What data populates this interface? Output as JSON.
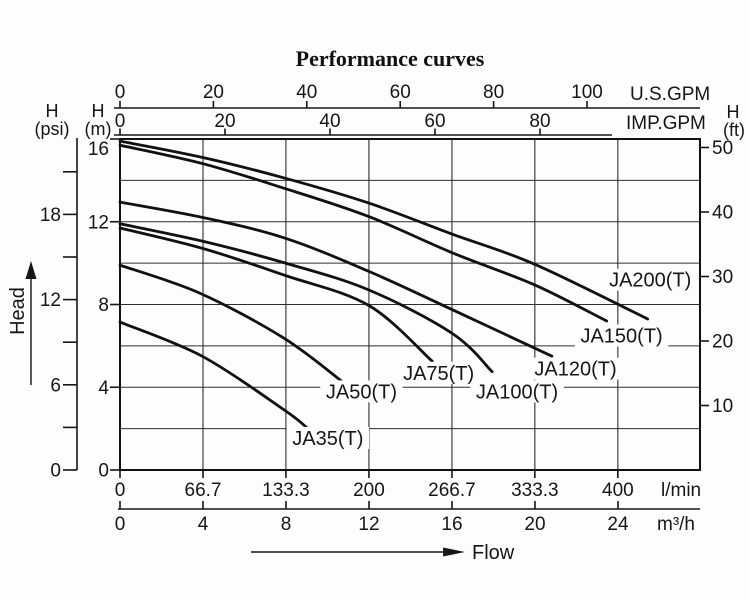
{
  "title": "Performance curves",
  "colors": {
    "ink": "#161616",
    "grid": "#2e2e2e",
    "curve": "#111111",
    "background": "#fdfdfd"
  },
  "corner_labels": {
    "psi_h": "H",
    "psi_unit": "(psi)",
    "m_h": "H",
    "m_unit": "(m)",
    "ft_h": "H",
    "ft_unit": "(ft)"
  },
  "chart_data": {
    "type": "line",
    "title": "Performance curves",
    "xlabel": "Flow",
    "ylabel": "Head",
    "grid": true,
    "x_range_lmin": [
      0,
      466
    ],
    "y_range_m": [
      0,
      16
    ],
    "x_axes": [
      {
        "name": "usgpm",
        "unit": "U.S.GPM",
        "ticks": [
          0,
          20,
          40,
          60,
          80,
          100
        ]
      },
      {
        "name": "impgpm",
        "unit": "IMP.GPM",
        "ticks": [
          0,
          20,
          40,
          60,
          80
        ]
      },
      {
        "name": "lmin",
        "unit": "l/min",
        "ticks": [
          0,
          66.7,
          133.3,
          200,
          266.7,
          333.3,
          400
        ]
      },
      {
        "name": "m3h",
        "unit": "m³/h",
        "ticks": [
          0,
          4,
          8,
          12,
          16,
          20,
          24
        ]
      }
    ],
    "y_axes": [
      {
        "name": "psi",
        "unit": "H (psi)",
        "ticks": [
          0,
          6,
          12,
          18
        ],
        "minor_step": 3,
        "minor_max": 21
      },
      {
        "name": "m",
        "unit": "H (m)",
        "ticks": [
          0,
          4,
          8,
          12,
          16
        ]
      },
      {
        "name": "ft",
        "unit": "H (ft)",
        "ticks": [
          10,
          20,
          30,
          40,
          50
        ]
      }
    ],
    "series": [
      {
        "name": "JA200(T)",
        "points": [
          [
            0,
            15.9
          ],
          [
            67,
            15.1
          ],
          [
            133,
            14.1
          ],
          [
            200,
            12.9
          ],
          [
            267,
            11.4
          ],
          [
            333,
            9.95
          ],
          [
            424,
            7.3
          ]
        ],
        "label_at": [
          426,
          9.2
        ]
      },
      {
        "name": "JA150(T)",
        "points": [
          [
            0,
            15.7
          ],
          [
            67,
            14.8
          ],
          [
            133,
            13.6
          ],
          [
            200,
            12.25
          ],
          [
            267,
            10.5
          ],
          [
            333,
            8.95
          ],
          [
            391,
            7.2
          ]
        ],
        "label_at": [
          403,
          6.5
        ]
      },
      {
        "name": "JA120(T)",
        "points": [
          [
            0,
            12.95
          ],
          [
            67,
            12.2
          ],
          [
            133,
            11.2
          ],
          [
            200,
            9.6
          ],
          [
            267,
            7.75
          ],
          [
            347,
            5.5
          ]
        ],
        "label_at": [
          366,
          4.9
        ]
      },
      {
        "name": "JA100(T)",
        "points": [
          [
            0,
            11.9
          ],
          [
            67,
            11.05
          ],
          [
            133,
            10.0
          ],
          [
            200,
            8.7
          ],
          [
            267,
            6.6
          ],
          [
            299,
            4.75
          ]
        ],
        "label_at": [
          319,
          3.8
        ]
      },
      {
        "name": "JA75(T)",
        "points": [
          [
            0,
            11.7
          ],
          [
            67,
            10.7
          ],
          [
            133,
            9.4
          ],
          [
            200,
            7.95
          ],
          [
            251,
            5.25
          ]
        ],
        "label_at": [
          256,
          4.7
        ]
      },
      {
        "name": "JA50(T)",
        "points": [
          [
            0,
            9.9
          ],
          [
            64,
            8.55
          ],
          [
            131,
            6.4
          ],
          [
            178,
            4.3
          ]
        ],
        "label_at": [
          194,
          3.8
        ]
      },
      {
        "name": "JA35(T)",
        "points": [
          [
            0,
            7.15
          ],
          [
            66,
            5.5
          ],
          [
            132,
            2.9
          ],
          [
            151,
            2.0
          ]
        ],
        "label_at": [
          167,
          1.55
        ]
      }
    ]
  }
}
